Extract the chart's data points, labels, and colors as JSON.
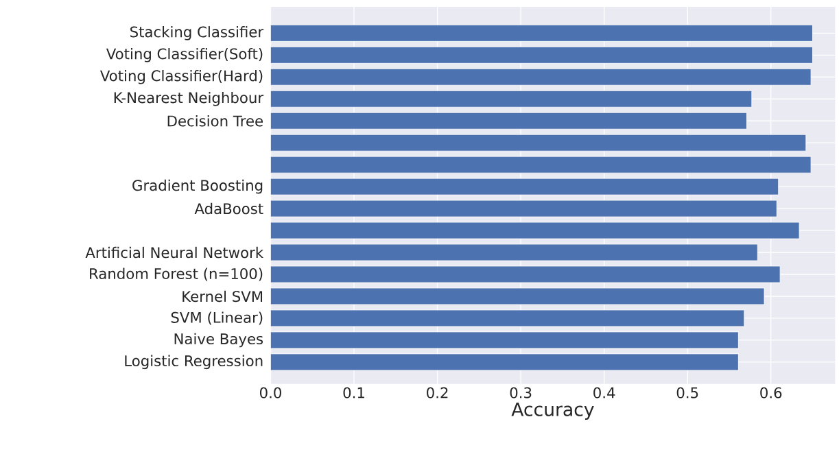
{
  "chart_data": {
    "type": "bar",
    "orientation": "horizontal",
    "xlabel": "Accuracy",
    "categories": [
      "Stacking Classifier",
      "Voting Classifier(Soft)",
      "Voting Classifier(Hard)",
      "K-Nearest Neighbour",
      "Decision Tree",
      null,
      null,
      "Gradient Boosting",
      "AdaBoost",
      null,
      "Artificial Neural Network",
      "Random Forest (n=100)",
      "Kernel SVM",
      "SVM (Linear)",
      "Naive Bayes",
      "Logistic Regression"
    ],
    "values": [
      0.65,
      0.65,
      0.648,
      0.577,
      0.571,
      0.642,
      0.648,
      0.609,
      0.607,
      0.634,
      0.584,
      0.611,
      0.592,
      0.568,
      0.561,
      0.561
    ],
    "color": "#4c72b0",
    "xlim": [
      0,
      0.677
    ],
    "xticks": [
      {
        "value": 0,
        "label": "0.0"
      },
      {
        "value": 0.1,
        "label": "0.1"
      },
      {
        "value": 0.2,
        "label": "0.2"
      },
      {
        "value": 0.3,
        "label": "0.3"
      },
      {
        "value": 0.4,
        "label": "0.4"
      },
      {
        "value": 0.5,
        "label": "0.5"
      },
      {
        "value": 0.6,
        "label": "0.6"
      }
    ],
    "grid": true
  }
}
